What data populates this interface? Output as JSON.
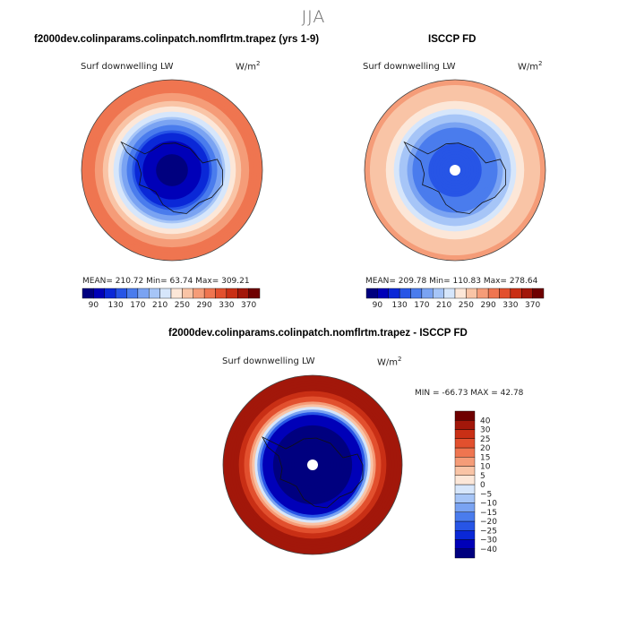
{
  "season": "JJA",
  "panels": {
    "model": {
      "case_title": "f2000dev.colinparams.colinpatch.nomflrtm.trapez (yrs 1-9)",
      "field_label": "Surf downwelling LW",
      "units_base": "W/m",
      "units_exp": "2",
      "stats_text": "MEAN= 210.72  Min=  63.74  Max= 309.21",
      "mean": 210.72,
      "min": 63.74,
      "max": 309.21
    },
    "obs": {
      "case_title": "ISCCP FD",
      "field_label": "Surf downwelling LW",
      "units_base": "W/m",
      "units_exp": "2",
      "stats_text": "MEAN= 209.78  Min= 110.83  Max= 278.64",
      "mean": 209.78,
      "min": 110.83,
      "max": 278.64
    },
    "diff": {
      "case_title": "f2000dev.colinparams.colinpatch.nomflrtm.trapez - ISCCP FD",
      "field_label": "Surf downwelling LW",
      "units_base": "W/m",
      "units_exp": "2",
      "stats_text": "MIN = -66.73 MAX =  42.78",
      "min": -66.73,
      "max": 42.78
    }
  },
  "chart_data": [
    {
      "type": "heatmap",
      "title": "Surf downwelling LW",
      "subtitle": "f2000dev.colinparams.colinpatch.nomflrtm.trapez (yrs 1-9)",
      "units": "W/m2",
      "projection": "south polar stereographic",
      "contour_levels": [
        90,
        110,
        130,
        150,
        170,
        190,
        210,
        230,
        250,
        270,
        290,
        310,
        330,
        350,
        370
      ],
      "colorbar_tick_labels": [
        "90",
        "130",
        "170",
        "210",
        "250",
        "290",
        "330",
        "370"
      ],
      "colors": [
        "#00007f",
        "#0000b8",
        "#0a28d7",
        "#2755e6",
        "#4a7ced",
        "#7aa3f2",
        "#a6c5f7",
        "#d6e6fb",
        "#fce7d8",
        "#f9c4a6",
        "#f59c78",
        "#ef7550",
        "#e2502e",
        "#c92f15",
        "#a2170a",
        "#6f0000"
      ],
      "zonal_profile": [
        {
          "r": 0.0,
          "v": 80
        },
        {
          "r": 0.25,
          "v": 95
        },
        {
          "r": 0.4,
          "v": 130
        },
        {
          "r": 0.55,
          "v": 190
        },
        {
          "r": 0.68,
          "v": 245
        },
        {
          "r": 0.8,
          "v": 280
        },
        {
          "r": 0.92,
          "v": 300
        },
        {
          "r": 1.0,
          "v": 305
        }
      ],
      "mean": 210.72,
      "min": 63.74,
      "max": 309.21
    },
    {
      "type": "heatmap",
      "title": "Surf downwelling LW",
      "subtitle": "ISCCP FD",
      "units": "W/m2",
      "projection": "south polar stereographic",
      "contour_levels": [
        90,
        110,
        130,
        150,
        170,
        190,
        210,
        230,
        250,
        270,
        290,
        310,
        330,
        350,
        370
      ],
      "colorbar_tick_labels": [
        "90",
        "130",
        "170",
        "210",
        "250",
        "290",
        "330",
        "370"
      ],
      "colors": [
        "#00007f",
        "#0000b8",
        "#0a28d7",
        "#2755e6",
        "#4a7ced",
        "#7aa3f2",
        "#a6c5f7",
        "#d6e6fb",
        "#fce7d8",
        "#f9c4a6",
        "#f59c78",
        "#ef7550",
        "#e2502e",
        "#c92f15",
        "#a2170a",
        "#6f0000"
      ],
      "zonal_profile": [
        {
          "r": 0.05,
          "v": 140
        },
        {
          "r": 0.3,
          "v": 150
        },
        {
          "r": 0.45,
          "v": 165
        },
        {
          "r": 0.6,
          "v": 205
        },
        {
          "r": 0.72,
          "v": 240
        },
        {
          "r": 0.85,
          "v": 262
        },
        {
          "r": 1.0,
          "v": 275
        }
      ],
      "missing_pole": true,
      "mean": 209.78,
      "min": 110.83,
      "max": 278.64
    },
    {
      "type": "heatmap",
      "title": "Surf downwelling LW",
      "subtitle": "f2000dev.colinparams.colinpatch.nomflrtm.trapez - ISCCP FD",
      "units": "W/m2",
      "projection": "south polar stereographic",
      "contour_levels": [
        -40,
        -30,
        -25,
        -20,
        -15,
        -10,
        -5,
        0,
        5,
        10,
        15,
        20,
        25,
        30,
        40
      ],
      "colorbar_tick_labels": [
        "-40",
        "-30",
        "-25",
        "-20",
        "-15",
        "-10",
        "-5",
        "0",
        "5",
        "10",
        "15",
        "20",
        "25",
        "30",
        "40"
      ],
      "colors": [
        "#00007f",
        "#0000b8",
        "#0a28d7",
        "#2755e6",
        "#4a7ced",
        "#7aa3f2",
        "#a6c5f7",
        "#d6e6fb",
        "#fce7d8",
        "#f9c4a6",
        "#f59c78",
        "#ef7550",
        "#e2502e",
        "#c92f15",
        "#a2170a",
        "#6f0000"
      ],
      "zonal_profile": [
        {
          "r": 0.0,
          "v": -45
        },
        {
          "r": 0.4,
          "v": -45
        },
        {
          "r": 0.55,
          "v": -30
        },
        {
          "r": 0.64,
          "v": 0
        },
        {
          "r": 0.72,
          "v": 20
        },
        {
          "r": 0.85,
          "v": 32
        },
        {
          "r": 1.0,
          "v": 30
        }
      ],
      "missing_pole": true,
      "min": -66.73,
      "max": 42.78
    }
  ]
}
